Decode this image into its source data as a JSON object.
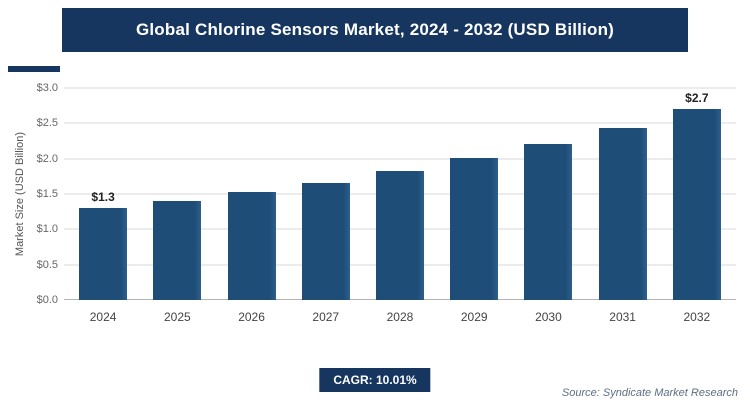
{
  "title": "Global Chlorine Sensors Market, 2024 - 2032 (USD Billion)",
  "chart_data": {
    "type": "bar",
    "categories": [
      "2024",
      "2025",
      "2026",
      "2027",
      "2028",
      "2029",
      "2030",
      "2031",
      "2032"
    ],
    "values": [
      1.3,
      1.4,
      1.53,
      1.66,
      1.82,
      2.01,
      2.21,
      2.43,
      2.7
    ],
    "bar_labels": [
      "$1.3",
      "",
      "",
      "",
      "",
      "",
      "",
      "",
      "$2.7"
    ],
    "title": "Global Chlorine Sensors Market, 2024 - 2032 (USD Billion)",
    "xlabel": "",
    "ylabel": "Market Size (USD Billion)",
    "ylim": [
      0,
      3.0
    ],
    "yticks": [
      0,
      0.5,
      1.0,
      1.5,
      2.0,
      2.5,
      3.0
    ],
    "ytick_labels": [
      "$0.0",
      "$0.5",
      "$1.0",
      "$1.5",
      "$2.0",
      "$2.5",
      "$3.0"
    ],
    "grid": true,
    "legend": "none"
  },
  "footer": {
    "cagr_label": "CAGR: 10.01%",
    "source": "Source: Syndicate Market Research"
  },
  "colors": {
    "banner": "#16365f",
    "bar": "#1e4d77",
    "badge": "#16365f",
    "gridline": "#d9d9d9"
  }
}
